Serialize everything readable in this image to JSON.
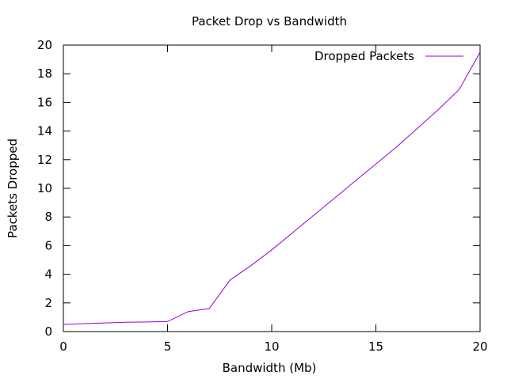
{
  "chart_data": {
    "type": "line",
    "title": "Packet Drop vs Bandwidth",
    "xlabel": "Bandwidth (Mb)",
    "ylabel": "Packets Dropped",
    "xlim": [
      0,
      20
    ],
    "ylim": [
      0,
      20
    ],
    "xticks": [
      0,
      5,
      10,
      15,
      20
    ],
    "yticks": [
      0,
      2,
      4,
      6,
      8,
      10,
      12,
      14,
      16,
      18,
      20
    ],
    "grid": false,
    "legend": "top-right",
    "series": [
      {
        "name": "Dropped Packets",
        "color": "#9400d3",
        "x": [
          0,
          1,
          2,
          3,
          4,
          5,
          6,
          7,
          8,
          9,
          10,
          11,
          12,
          13,
          14,
          15,
          16,
          17,
          18,
          19,
          20
        ],
        "y": [
          0.5,
          0.55,
          0.6,
          0.65,
          0.67,
          0.7,
          1.4,
          1.6,
          3.6,
          4.6,
          5.7,
          6.9,
          8.1,
          9.3,
          10.5,
          11.7,
          12.9,
          14.2,
          15.5,
          16.9,
          19.5
        ]
      }
    ]
  }
}
